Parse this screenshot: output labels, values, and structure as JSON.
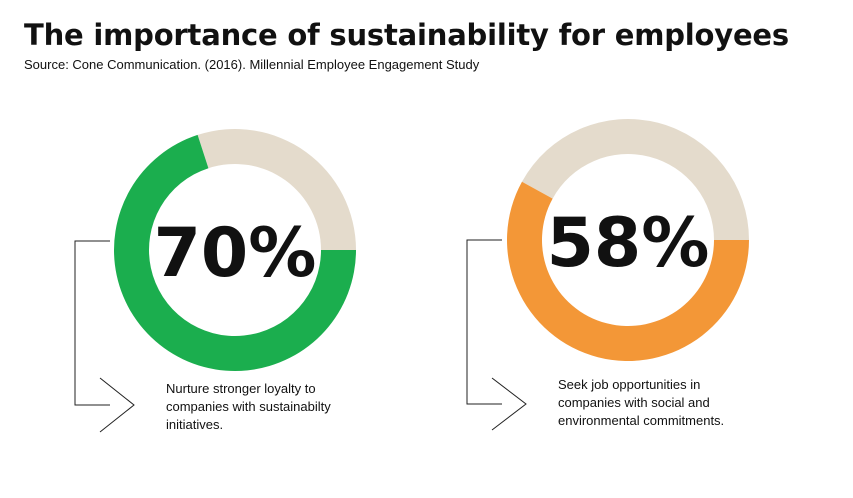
{
  "header": {
    "title": "The importance of sustainability for employees",
    "source": "Source: Cone Communication. (2016). Millennial Employee Engagement Study"
  },
  "colors": {
    "green": "#1bae4e",
    "orange": "#f39737",
    "remainder": "#e4dbcc",
    "line": "#222222"
  },
  "chart_data": [
    {
      "type": "pie",
      "categories": [
        "Nurture stronger loyalty to companies with sustainabilty initiatives",
        "Other"
      ],
      "values": [
        70,
        30
      ],
      "label": "70%",
      "caption": [
        "Nurture stronger loyalty to",
        "companies with sustainabilty",
        "initiatives."
      ]
    },
    {
      "type": "pie",
      "categories": [
        "Seek job opportunities in companies with social and environmental commitments",
        "Other"
      ],
      "values": [
        58,
        42
      ],
      "label": "58%",
      "caption": [
        "Seek job opportunities in",
        "companies with social and",
        "environmental commitments."
      ]
    }
  ]
}
